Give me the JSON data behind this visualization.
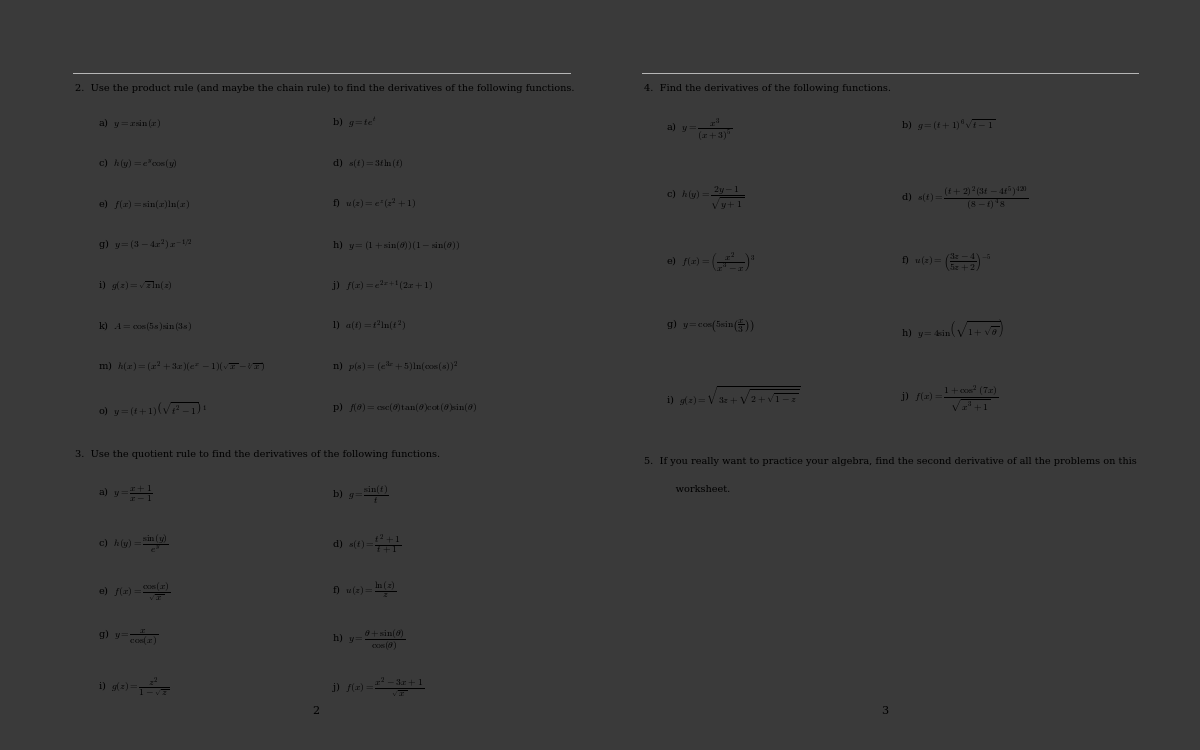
{
  "outer_bg": "#3a3a3a",
  "page_bg": "#ffffff",
  "line_color": "#aaaaaa",
  "text_color": "#000000",
  "fs_header": 7.0,
  "fs_item": 7.0,
  "fs_pagenum": 8.0,
  "left_page": {
    "section2_header": "2.  Use the product rule (and maybe the chain rule) to find the derivatives of the following functions.",
    "section2_left": [
      "a)  $y = x\\sin(x)$",
      "c)  $h(y) = e^y\\cos(y)$",
      "e)  $f(x) = \\sin(x)\\ln(x)$",
      "g)  $y = (3-4x^2)\\,x^{-1/2}$",
      "i)  $g(z) = \\sqrt{z}\\ln(z)$",
      "k)  $A = \\cos(5s)\\sin(3s)$",
      "m)  $h(x) = (x^2+3x)(e^x-1)(\\sqrt{x}-\\sqrt[3]{x})$",
      "o)  $y = (t+1)\\left(\\sqrt{t^2-1}\\right)^{\\,1}$"
    ],
    "section2_right": [
      "b)  $g = te^t$",
      "d)  $s(t) = 3t\\ln(t)$",
      "f)  $u(z) = e^z(z^2+1)$",
      "h)  $y = (1+\\sin(\\theta))(1-\\sin(\\theta))$",
      "j)  $f(x) = e^{2x+1}(2x+1)$",
      "l)  $a(t) = t^2\\ln(t^2)$",
      "n)  $p(s) = (e^{3x}+5)\\ln(\\cos(s))^2$",
      "p)  $f(\\theta) = \\csc(\\theta)\\tan(\\theta)\\cot(\\theta)\\sin(\\theta)$"
    ],
    "section3_header": "3.  Use the quotient rule to find the derivatives of the following functions.",
    "section3_left": [
      "a)  $y = \\dfrac{x+1}{x-1}$",
      "c)  $h(y) = \\dfrac{\\sin(y)}{e^y}$",
      "e)  $f(x) = \\dfrac{\\cos(x)}{\\sqrt{x}}$",
      "g)  $y = \\dfrac{x}{\\cos(x)}$",
      "i)  $g(z) = \\dfrac{z^2}{1-\\sqrt{z}}$"
    ],
    "section3_right": [
      "b)  $g = \\dfrac{\\sin(t)}{t}$",
      "d)  $s(t) = \\dfrac{t^2+1}{t+1}$",
      "f)  $u(z) = \\dfrac{\\ln(z)}{z}$",
      "h)  $y = \\dfrac{\\theta+\\sin(\\theta)}{\\cos(\\theta)}$",
      "j)  $f(x) = \\dfrac{x^2-3x+1}{\\sqrt{x}}$"
    ],
    "pagenum": "2"
  },
  "right_page": {
    "section4_header": "4.  Find the derivatives of the following functions.",
    "section4_left": [
      "a)  $y = \\dfrac{x^3}{(x+3)^5}$",
      "c)  $h(y) = \\dfrac{2y-1}{\\sqrt{y+1}}$",
      "e)  $f(x) = \\left(\\dfrac{x^2}{x^3-x}\\right)^3$",
      "g)  $y = \\cos\\!\\left(5\\sin\\!\\left(\\dfrac{x}{3}\\right)\\right)$",
      "i)  $g(z) = \\sqrt{3z+\\sqrt{2+\\sqrt{1-z}}}$"
    ],
    "section4_right": [
      "b)  $g = (t+1)^6\\sqrt{t-1}$",
      "d)  $s(t) = \\dfrac{(t+2)^2(3t-4t^5)^{420}}{(8-t)^4\\,8}$",
      "f)  $u(z) = \\left(\\dfrac{3z-4}{5z+2}\\right)^{-5}$",
      "h)  $y = 4\\sin\\!\\left(\\sqrt{1+\\sqrt{\\theta}}\\right)$",
      "j)  $f(x) = \\dfrac{1+\\cos^2(7x)}{\\sqrt{x^3+1}}$"
    ],
    "section5_line1": "5.  If you really want to practice your algebra, find the second derivative of all the problems on this",
    "section5_line2": "     worksheet.",
    "pagenum": "3"
  }
}
